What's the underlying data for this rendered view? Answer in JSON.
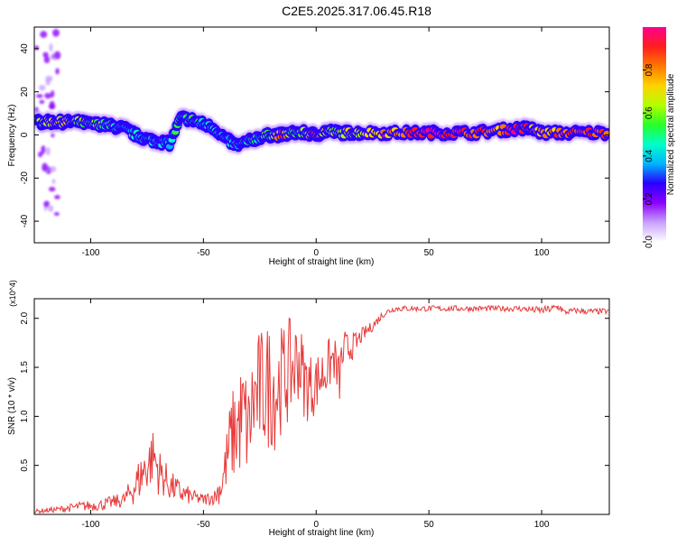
{
  "figure_title": "C2E5.2025.317.06.45.R18",
  "colors": {
    "snr_line": "#e83a3a",
    "frame": "#000000"
  },
  "chart_data": [
    {
      "type": "heatmap",
      "title": "C2E5.2025.317.06.45.R18",
      "xlabel": "Height of straight line (km)",
      "ylabel": "Frequency (Hz)",
      "xlim": [
        -125,
        130
      ],
      "ylim": [
        -50,
        50
      ],
      "xticks": [
        -100,
        -50,
        0,
        50,
        100
      ],
      "yticks": [
        -40,
        -20,
        0,
        20,
        40
      ],
      "colorbar": {
        "label": "Normalized spectral amplitude",
        "range": [
          0,
          1
        ],
        "ticks": [
          "0.0",
          "0.2",
          "0.4",
          "0.6",
          "0.8"
        ],
        "colors": [
          "#ffffff",
          "#c9a0ff",
          "#8c00ff",
          "#2a00ff",
          "#00b4ff",
          "#00ffc8",
          "#28ff28",
          "#b4ff00",
          "#ffd200",
          "#ff7800",
          "#ff1e1e",
          "#ff0090"
        ]
      },
      "ridge": [
        {
          "x": -124,
          "y": 6,
          "amp": 0.55
        },
        {
          "x": -120,
          "y": 6,
          "amp": 0.6
        },
        {
          "x": -115,
          "y": 6,
          "amp": 0.75
        },
        {
          "x": -110,
          "y": 6,
          "amp": 0.65
        },
        {
          "x": -105,
          "y": 6,
          "amp": 0.55
        },
        {
          "x": -100,
          "y": 5,
          "amp": 0.6
        },
        {
          "x": -95,
          "y": 5,
          "amp": 0.55
        },
        {
          "x": -90,
          "y": 4,
          "amp": 0.5
        },
        {
          "x": -85,
          "y": 3,
          "amp": 0.45
        },
        {
          "x": -80,
          "y": 0,
          "amp": 0.45
        },
        {
          "x": -75,
          "y": -2,
          "amp": 0.45
        },
        {
          "x": -70,
          "y": -3,
          "amp": 0.42
        },
        {
          "x": -65,
          "y": -4,
          "amp": 0.4
        },
        {
          "x": -60,
          "y": 8,
          "amp": 0.5
        },
        {
          "x": -55,
          "y": 7,
          "amp": 0.5
        },
        {
          "x": -50,
          "y": 5,
          "amp": 0.45
        },
        {
          "x": -45,
          "y": 3,
          "amp": 0.45
        },
        {
          "x": -40,
          "y": -2,
          "amp": 0.45
        },
        {
          "x": -35,
          "y": -5,
          "amp": 0.45
        },
        {
          "x": -30,
          "y": -3,
          "amp": 0.5
        },
        {
          "x": -25,
          "y": -1,
          "amp": 0.5
        },
        {
          "x": -20,
          "y": 0,
          "amp": 0.55
        },
        {
          "x": -15,
          "y": 0,
          "amp": 0.9
        },
        {
          "x": -10,
          "y": 1,
          "amp": 0.55
        },
        {
          "x": -5,
          "y": 1,
          "amp": 0.6
        },
        {
          "x": 0,
          "y": 0,
          "amp": 0.9
        },
        {
          "x": 5,
          "y": 2,
          "amp": 0.6
        },
        {
          "x": 10,
          "y": 1,
          "amp": 0.6
        },
        {
          "x": 15,
          "y": 1,
          "amp": 0.65
        },
        {
          "x": 20,
          "y": 1,
          "amp": 0.65
        },
        {
          "x": 30,
          "y": 1,
          "amp": 0.8
        },
        {
          "x": 40,
          "y": 1,
          "amp": 0.85
        },
        {
          "x": 50,
          "y": 1,
          "amp": 0.95
        },
        {
          "x": 60,
          "y": 1,
          "amp": 0.95
        },
        {
          "x": 70,
          "y": 1,
          "amp": 0.9
        },
        {
          "x": 80,
          "y": 2,
          "amp": 0.8
        },
        {
          "x": 90,
          "y": 3,
          "amp": 0.95
        },
        {
          "x": 95,
          "y": 3,
          "amp": 0.85
        },
        {
          "x": 100,
          "y": 1,
          "amp": 0.75
        },
        {
          "x": 110,
          "y": 1,
          "amp": 0.85
        },
        {
          "x": 120,
          "y": 1,
          "amp": 0.9
        },
        {
          "x": 130,
          "y": 1,
          "amp": 0.85
        }
      ]
    },
    {
      "type": "line",
      "xlabel": "Height of straight line (km)",
      "ylabel": "SNR (10 * v/v)",
      "y_multiplier": "(x10^4)",
      "xlim": [
        -125,
        130
      ],
      "ylim": [
        0,
        2.2
      ],
      "xticks": [
        -100,
        -50,
        0,
        50,
        100
      ],
      "yticks": [
        "0.5",
        "1.0",
        "1.5",
        "2.0"
      ],
      "series": [
        {
          "name": "SNR",
          "x": [
            -125,
            -115,
            -105,
            -95,
            -85,
            -80,
            -75,
            -72,
            -70,
            -65,
            -60,
            -55,
            -50,
            -45,
            -42,
            -40,
            -38,
            -35,
            -32,
            -30,
            -28,
            -25,
            -22,
            -20,
            -18,
            -15,
            -12,
            -10,
            -8,
            -5,
            -2,
            0,
            2,
            5,
            8,
            10,
            12,
            15,
            18,
            20,
            25,
            30,
            35,
            40,
            50,
            60,
            70,
            80,
            90,
            100,
            105,
            108,
            110,
            115,
            120,
            125,
            130
          ],
          "y": [
            0.03,
            0.05,
            0.08,
            0.1,
            0.15,
            0.3,
            0.5,
            0.6,
            0.45,
            0.3,
            0.22,
            0.18,
            0.15,
            0.18,
            0.3,
            0.5,
            0.75,
            0.9,
            1.0,
            0.85,
            1.15,
            1.25,
            1.3,
            1.35,
            1.25,
            1.4,
            1.45,
            1.5,
            1.6,
            1.35,
            1.3,
            1.35,
            1.4,
            1.5,
            1.6,
            1.35,
            1.65,
            1.7,
            1.75,
            1.82,
            1.92,
            2.05,
            2.1,
            2.1,
            2.1,
            2.1,
            2.1,
            2.1,
            2.1,
            2.08,
            2.1,
            2.12,
            2.06,
            2.08,
            2.07,
            2.07,
            2.07
          ],
          "noise": [
            0.02,
            0.03,
            0.05,
            0.06,
            0.08,
            0.2,
            0.28,
            0.3,
            0.25,
            0.16,
            0.12,
            0.08,
            0.06,
            0.08,
            0.2,
            0.3,
            0.45,
            0.55,
            0.6,
            0.5,
            0.6,
            0.65,
            0.65,
            0.7,
            0.6,
            0.55,
            0.55,
            0.5,
            0.45,
            0.4,
            0.35,
            0.3,
            0.3,
            0.28,
            0.25,
            0.3,
            0.25,
            0.15,
            0.12,
            0.08,
            0.05,
            0.04,
            0.03,
            0.03,
            0.03,
            0.03,
            0.03,
            0.03,
            0.03,
            0.04,
            0.04,
            0.05,
            0.03,
            0.03,
            0.03,
            0.03,
            0.03
          ]
        }
      ]
    }
  ]
}
